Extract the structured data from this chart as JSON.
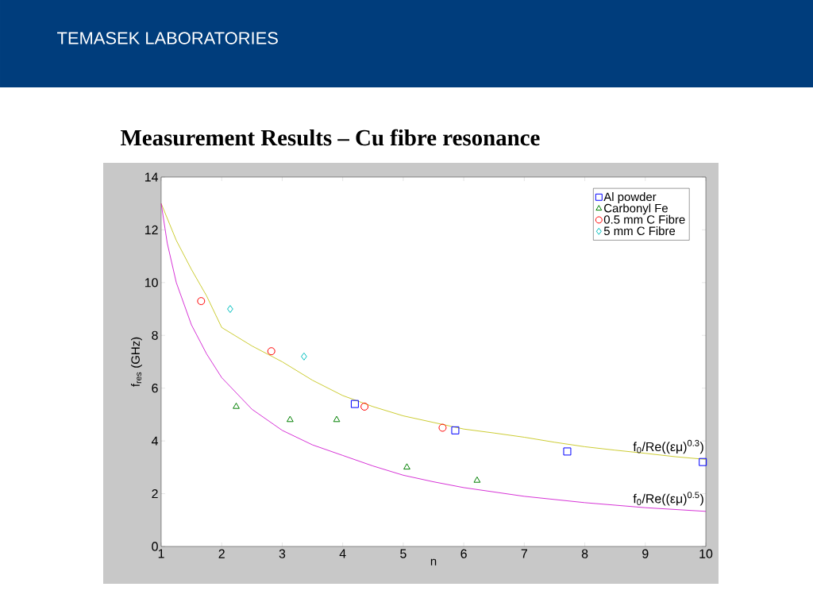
{
  "chart_data": {
    "type": "scatter",
    "title": "Measurement Results – Cu fibre resonance",
    "xlabel": "n",
    "ylabel": "f$_{res}$ (GHz)",
    "xlim": [
      1,
      10
    ],
    "ylim": [
      0,
      14
    ],
    "xticks": [
      1,
      2,
      3,
      4,
      5,
      6,
      7,
      8,
      9,
      10
    ],
    "yticks": [
      0,
      2,
      4,
      6,
      8,
      10,
      12,
      14
    ],
    "legend": "top right",
    "series": [
      {
        "name": "Al powder",
        "color": "#0000ff",
        "marker": "square",
        "x": [
          4.2,
          5.86,
          7.71,
          9.95
        ],
        "values": [
          5.4,
          4.4,
          3.6,
          3.2
        ]
      },
      {
        "name": "Carbonyl Fe",
        "color": "#008000",
        "marker": "triangle",
        "x": [
          2.24,
          3.13,
          3.9,
          5.06,
          6.22
        ],
        "values": [
          5.3,
          4.8,
          4.8,
          3.0,
          2.5
        ]
      },
      {
        "name": "0.5 mm C Fibre",
        "color": "#ff0000",
        "marker": "circle",
        "x": [
          1.66,
          2.82,
          4.36,
          5.65
        ],
        "values": [
          9.3,
          7.4,
          5.3,
          4.5
        ]
      },
      {
        "name": "5 mm C Fibre",
        "color": "#00bfbf",
        "marker": "diamond",
        "x": [
          2.14,
          3.36
        ],
        "values": [
          9.0,
          7.2
        ]
      },
      {
        "type": "line",
        "color": "#bfbf00",
        "marker": "none",
        "x": [
          1,
          1.25,
          1.5,
          1.75,
          2,
          2.5,
          3,
          3.5,
          4,
          4.5,
          5,
          5.5,
          6,
          6.5,
          7,
          7.5,
          8,
          8.5,
          9,
          9.5,
          10
        ],
        "values": [
          13,
          11.6,
          10.5,
          9.5,
          8.3,
          7.6,
          7.0,
          6.3,
          5.72,
          5.3,
          4.95,
          4.7,
          4.45,
          4.3,
          4.14,
          3.95,
          3.78,
          3.65,
          3.53,
          3.4,
          3.3
        ]
      },
      {
        "type": "line",
        "color": "#cc00cc",
        "marker": "none",
        "x": [
          1,
          1.1,
          1.25,
          1.5,
          1.75,
          2,
          2.5,
          3,
          3.5,
          4,
          4.5,
          5,
          5.5,
          6,
          7,
          8,
          9,
          10
        ],
        "values": [
          13,
          11.5,
          10,
          8.4,
          7.3,
          6.4,
          5.2,
          4.4,
          3.85,
          3.45,
          3.05,
          2.7,
          2.45,
          2.23,
          1.9,
          1.66,
          1.47,
          1.33
        ]
      }
    ],
    "annotations": [
      "TEMASEK LABORATORIES",
      {
        "text": "f$_{0}$/Re((εμ)$^{0.3}$)",
        "x": 10,
        "y": 3.3
      },
      {
        "text": "f$_{0}$/Re((εμ)$^{0.5}$)",
        "x": 10,
        "y": 1.33
      }
    ]
  }
}
